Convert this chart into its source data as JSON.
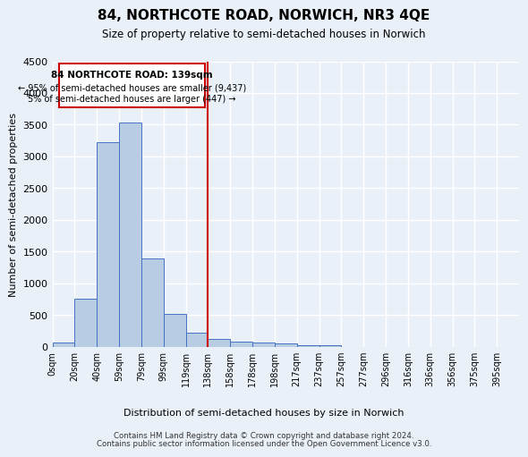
{
  "title": "84, NORTHCOTE ROAD, NORWICH, NR3 4QE",
  "subtitle": "Size of property relative to semi-detached houses in Norwich",
  "xlabel": "Distribution of semi-detached houses by size in Norwich",
  "ylabel": "Number of semi-detached properties",
  "bar_categories": [
    "0sqm",
    "20sqm",
    "40sqm",
    "59sqm",
    "79sqm",
    "99sqm",
    "119sqm",
    "138sqm",
    "158sqm",
    "178sqm",
    "198sqm",
    "217sqm",
    "237sqm",
    "257sqm",
    "277sqm",
    "296sqm",
    "316sqm",
    "336sqm",
    "356sqm",
    "375sqm",
    "395sqm"
  ],
  "bar_values": [
    70,
    750,
    3230,
    3540,
    1390,
    510,
    225,
    115,
    85,
    65,
    45,
    30,
    30,
    0,
    0,
    0,
    0,
    0,
    0,
    0
  ],
  "bar_color": "#b8cce4",
  "bar_edge_color": "#4472c4",
  "ylim": [
    0,
    4500
  ],
  "yticks": [
    0,
    500,
    1000,
    1500,
    2000,
    2500,
    3000,
    3500,
    4000,
    4500
  ],
  "vline_pos": 7.0,
  "vline_color": "#cc0000",
  "annotation_title": "84 NORTHCOTE ROAD: 139sqm",
  "annotation_line1": "← 95% of semi-detached houses are smaller (9,437)",
  "annotation_line2": "5% of semi-detached houses are larger (447) →",
  "annotation_box_color": "#cc0000",
  "footer_line1": "Contains HM Land Registry data © Crown copyright and database right 2024.",
  "footer_line2": "Contains public sector information licensed under the Open Government Licence v3.0.",
  "background_color": "#eaf0f8",
  "plot_bg_color": "#eaf0f8",
  "grid_color": "#ffffff"
}
